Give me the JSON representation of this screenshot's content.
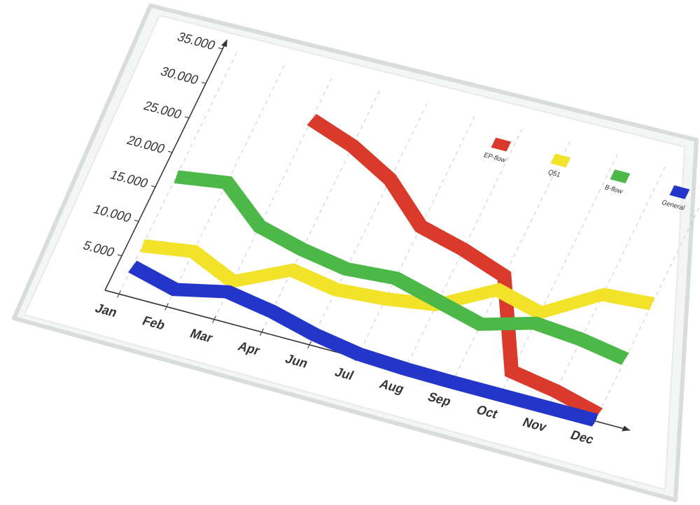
{
  "chart_data": {
    "type": "line",
    "categories": [
      "Jan",
      "Feb",
      "Mar",
      "Apr",
      "Jun",
      "Jul",
      "Aug",
      "Sep",
      "Oct",
      "Nov",
      "Dec"
    ],
    "series": [
      {
        "name": "EP-flow",
        "color": "#d93a2b",
        "values": [
          null,
          null,
          29000,
          27000,
          24000,
          19000,
          17500,
          15500,
          3500,
          2500,
          1000
        ]
      },
      {
        "name": "Q51",
        "color": "#f2e32a",
        "values": [
          7000,
          8000,
          5500,
          9000,
          8000,
          8500,
          9500,
          13500,
          12000,
          16500,
          17000
        ]
      },
      {
        "name": "B-flow",
        "color": "#4cb847",
        "values": [
          17000,
          18000,
          13500,
          12000,
          11000,
          11500,
          10000,
          8500,
          10500,
          10000,
          9000
        ]
      },
      {
        "name": "General",
        "color": "#2336c9",
        "values": [
          4000,
          2500,
          4000,
          3000,
          1500,
          500,
          200,
          100,
          100,
          100,
          100
        ]
      }
    ],
    "ylim": [
      0,
      35000
    ],
    "yticks": [
      {
        "value": 5000,
        "label": "5.000"
      },
      {
        "value": 10000,
        "label": "10.000"
      },
      {
        "value": 15000,
        "label": "15.000"
      },
      {
        "value": 20000,
        "label": "20.000"
      },
      {
        "value": 25000,
        "label": "25.000"
      },
      {
        "value": 30000,
        "label": "30.000"
      },
      {
        "value": 35000,
        "label": "35.000"
      }
    ],
    "grid": true
  }
}
